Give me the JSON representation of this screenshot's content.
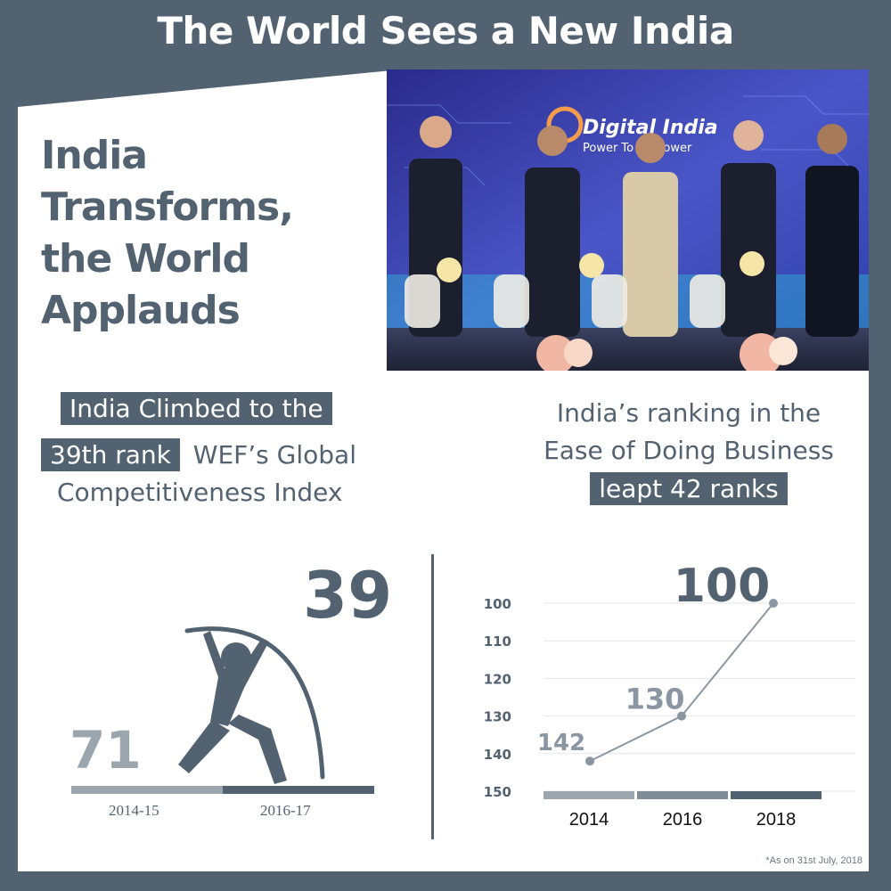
{
  "header": {
    "title": "The World Sees a New India"
  },
  "headline": {
    "line1": "India Transforms,",
    "line2": "the World",
    "line3": "Applauds"
  },
  "photo": {
    "backdrop_title": "Digital India",
    "backdrop_subtitle": "Power To Empower"
  },
  "left_panel": {
    "line1_highlight": "India Climbed to the",
    "line2_highlight": "39th rank",
    "line2_text": "WEF’s Global",
    "line3_text": "Competitiveness Index",
    "value_big": "39",
    "value_small": "71",
    "year_left": "2014-15",
    "year_right": "2016-17"
  },
  "right_panel": {
    "line1": "India’s ranking in the",
    "line2": "Ease of Doing Business",
    "line3_highlight": "leapt 42 ranks"
  },
  "chart_data": {
    "type": "line",
    "x": [
      "2014",
      "2016",
      "2018"
    ],
    "series": [
      {
        "values": [
          142,
          130,
          100
        ]
      }
    ],
    "data_labels": [
      "142",
      "130",
      "100"
    ],
    "y_ticks": [
      "100",
      "110",
      "120",
      "130",
      "140",
      "150"
    ],
    "ylim": [
      150,
      100
    ],
    "grid": true
  },
  "footnote": "*As on 31st July, 2018",
  "colors": {
    "primary": "#536270",
    "light": "#9aa5ae",
    "bg": "#ffffff"
  }
}
